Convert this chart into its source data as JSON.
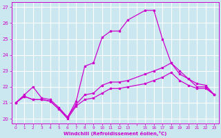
{
  "background_color": "#cbe8f0",
  "line_color": "#cc00cc",
  "grid_color": "#ffffff",
  "xlabel": "Windchill (Refroidissement éolien,°C)",
  "xlim": [
    -0.5,
    23.5
  ],
  "ylim": [
    19.7,
    27.3
  ],
  "yticks": [
    20,
    21,
    22,
    23,
    24,
    25,
    26,
    27
  ],
  "xtick_labels": [
    "0",
    "1",
    "2",
    "3",
    "4",
    "5",
    "6",
    "7",
    "8",
    "9",
    "10",
    "11",
    "12",
    "13",
    "",
    "15",
    "16",
    "17",
    "18",
    "19",
    "20",
    "21",
    "22",
    "23"
  ],
  "xtick_pos": [
    0,
    1,
    2,
    3,
    4,
    5,
    6,
    7,
    8,
    9,
    10,
    11,
    12,
    13,
    14,
    15,
    16,
    17,
    18,
    19,
    20,
    21,
    22,
    23
  ],
  "curve3_x": [
    0,
    1,
    2,
    3,
    4,
    5,
    6,
    7,
    8,
    9,
    10,
    11,
    12,
    13,
    15,
    16,
    17,
    18,
    19,
    20,
    21,
    22,
    23
  ],
  "curve3_y": [
    21.0,
    21.5,
    22.0,
    21.3,
    21.2,
    20.7,
    20.1,
    21.1,
    23.3,
    23.5,
    25.1,
    25.5,
    25.5,
    26.2,
    26.8,
    26.8,
    25.0,
    23.5,
    22.8,
    22.5,
    22.0,
    22.0,
    21.5
  ],
  "curve2_x": [
    0,
    1,
    2,
    3,
    4,
    5,
    6,
    7,
    8,
    9,
    10,
    11,
    12,
    13,
    15,
    16,
    17,
    18,
    19,
    20,
    21,
    22,
    23
  ],
  "curve2_y": [
    21.0,
    21.4,
    21.2,
    21.2,
    21.1,
    20.6,
    20.1,
    20.9,
    21.5,
    21.6,
    22.1,
    22.3,
    22.3,
    22.4,
    22.8,
    23.0,
    23.2,
    23.5,
    23.0,
    22.5,
    22.2,
    22.1,
    21.5
  ],
  "curve1_x": [
    0,
    1,
    2,
    3,
    4,
    5,
    6,
    7,
    8,
    9,
    10,
    11,
    12,
    13,
    15,
    16,
    17,
    18,
    19,
    20,
    21,
    22,
    23
  ],
  "curve1_y": [
    21.0,
    21.4,
    21.2,
    21.2,
    21.1,
    20.6,
    20.0,
    20.8,
    21.2,
    21.3,
    21.6,
    21.9,
    21.9,
    22.0,
    22.2,
    22.4,
    22.6,
    22.9,
    22.4,
    22.1,
    21.9,
    21.9,
    21.5
  ],
  "figsize": [
    3.2,
    2.0
  ],
  "dpi": 100
}
